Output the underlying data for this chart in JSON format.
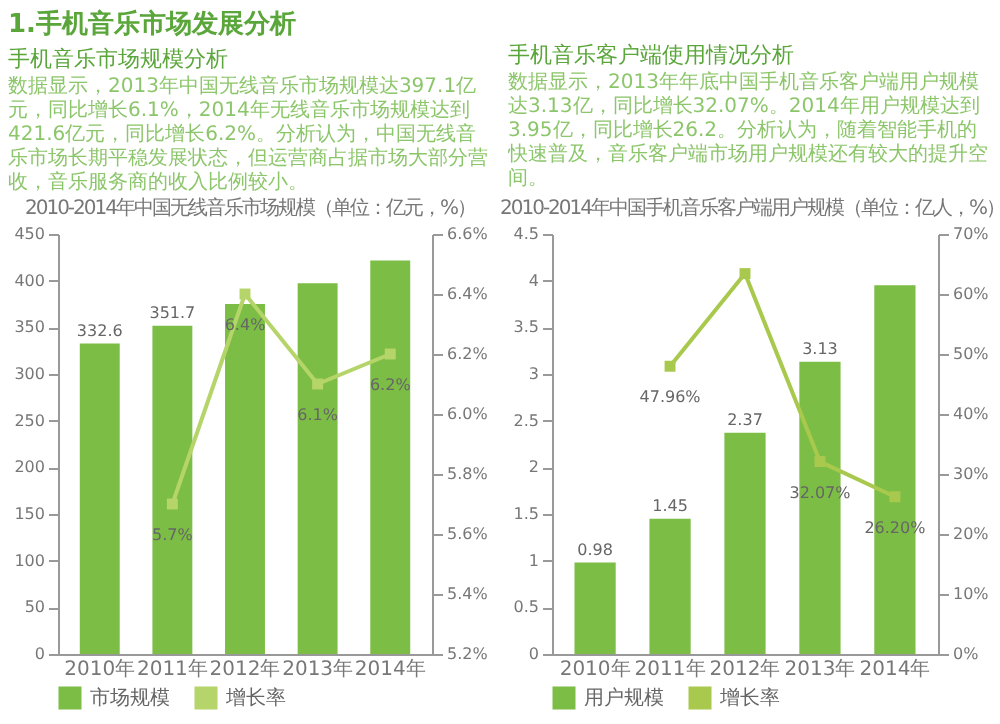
{
  "chart_data": [
    {
      "type": "bar",
      "title": "2010-2014年中国无线音乐市场规模（单位：亿元，%）",
      "annotations": [
        "1.手机音乐市场发展分析",
        "手机音乐市场规模分析",
        "数据显示，2013年中国无线音乐市场规模达397.1亿元，同比增长6.1%，2014年无线音乐市场规模达到421.6亿元，同比增长6.2%。分析认为，中国无线音乐市场长期平稳发展状态，但运营商占据市场大部分营收，音乐服务商的收入比例较小。"
      ],
      "categories": [
        "2010年",
        "2011年",
        "2012年",
        "2013年",
        "2014年"
      ],
      "series": [
        {
          "name": "市场规模",
          "color": "#7cbd45",
          "values": [
            332.6,
            351.7,
            375,
            397.1,
            421.6
          ],
          "value_labels": [
            "332.6",
            "351.7",
            null,
            null,
            null
          ]
        },
        {
          "name": "增长率",
          "type": "line",
          "axis": "y2",
          "color": "#b5d46a",
          "values": [
            null,
            5.7,
            6.4,
            6.1,
            6.2
          ],
          "value_labels": [
            null,
            "5.7%",
            "6.4%",
            "6.1%",
            "6.2%"
          ]
        }
      ],
      "ylim": [
        0,
        450
      ],
      "yticks": [
        0,
        50,
        100,
        150,
        200,
        250,
        300,
        350,
        400,
        450
      ],
      "y2lim": [
        5.2,
        6.6
      ],
      "y2ticks": [
        {
          "value": 5.2,
          "label": "5.2%"
        },
        {
          "value": 5.4,
          "label": "5.4%"
        },
        {
          "value": 5.6,
          "label": "5.6%"
        },
        {
          "value": 5.8,
          "label": "5.8%"
        },
        {
          "value": 6.0,
          "label": "6.0%"
        },
        {
          "value": 6.2,
          "label": "6.2%"
        },
        {
          "value": 6.4,
          "label": "6.4%"
        },
        {
          "value": 6.6,
          "label": "6.6%"
        }
      ],
      "legend": "bottom",
      "marker": "square"
    },
    {
      "type": "bar",
      "title": "2010-2014年中国手机音乐客户端用户规模（单位：亿人，%）",
      "annotations": [
        "手机音乐客户端使用情况分析",
        "数据显示，2013年年底中国手机音乐客户端用户规模达3.13亿，同比增长32.07%。2014年用户规模达到3.95亿，同比增长26.2。分析认为，随着智能手机的快速普及，音乐客户端市场用户规模还有较大的提升空间。"
      ],
      "categories": [
        "2010年",
        "2011年",
        "2012年",
        "2013年",
        "2014年"
      ],
      "series": [
        {
          "name": "用户规模",
          "color": "#7cbd45",
          "values": [
            0.98,
            1.45,
            2.37,
            3.13,
            3.95
          ],
          "value_labels": [
            "0.98",
            "1.45",
            "2.37",
            "3.13",
            null
          ]
        },
        {
          "name": "增长率",
          "type": "line",
          "axis": "y2",
          "color": "#a9c94e",
          "values": [
            null,
            47.96,
            63.4,
            32.07,
            26.2
          ],
          "value_labels": [
            null,
            "47.96%",
            null,
            "32.07%",
            "26.20%"
          ]
        }
      ],
      "ylim": [
        0,
        4.5
      ],
      "yticks": [
        0,
        0.5,
        1,
        1.5,
        2,
        2.5,
        3,
        3.5,
        4,
        4.5
      ],
      "y2lim": [
        0,
        70
      ],
      "y2ticks": [
        {
          "value": 0,
          "label": "0%"
        },
        {
          "value": 10,
          "label": "10%"
        },
        {
          "value": 20,
          "label": "20%"
        },
        {
          "value": 30,
          "label": "30%"
        },
        {
          "value": 40,
          "label": "40%"
        },
        {
          "value": 50,
          "label": "50%"
        },
        {
          "value": 60,
          "label": "60%"
        },
        {
          "value": 70,
          "label": "70%"
        }
      ],
      "legend": "bottom",
      "marker": "square"
    }
  ]
}
